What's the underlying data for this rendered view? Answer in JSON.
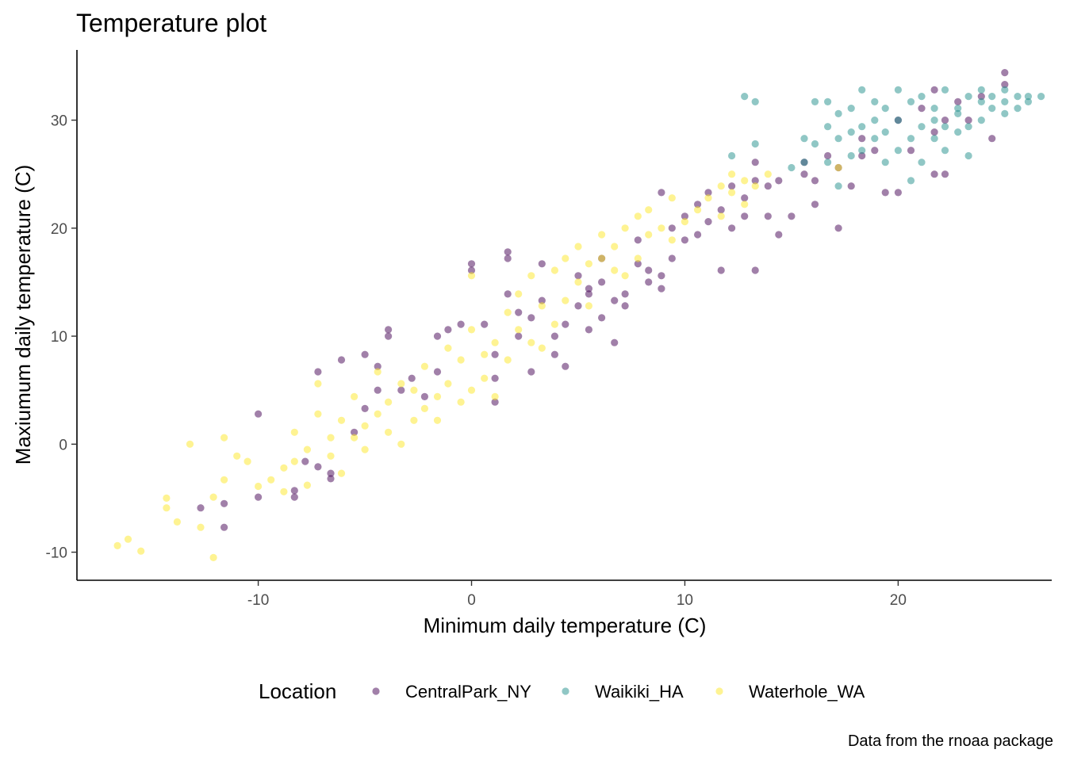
{
  "chart_data": {
    "type": "scatter",
    "title": "Temperature plot",
    "xlabel": "Minimum daily temperature (C)",
    "ylabel": "Maxiumum daily temperature (C)",
    "caption": "Data from the rnoaa package",
    "xlim": [
      -18.5,
      27.2
    ],
    "ylim": [
      -12.6,
      36.5
    ],
    "x_ticks": [
      -10,
      0,
      10,
      20
    ],
    "y_ticks": [
      -10,
      0,
      10,
      20,
      30
    ],
    "grid": false,
    "legend_position": "bottom",
    "legend_title": "Location",
    "point_opacity": 0.5,
    "series": [
      {
        "name": "CentralPark_NY",
        "color": "#440154",
        "points": [
          [
            -10,
            2.8
          ],
          [
            -10,
            -4.9
          ],
          [
            -12.7,
            -5.9
          ],
          [
            -11.6,
            -5.5
          ],
          [
            -11.6,
            -7.7
          ],
          [
            -8.3,
            -4.3
          ],
          [
            -8.3,
            -4.9
          ],
          [
            -7.8,
            -1.6
          ],
          [
            -7.2,
            6.7
          ],
          [
            -7.2,
            -2.1
          ],
          [
            -6.6,
            -3.2
          ],
          [
            -6.6,
            -2.7
          ],
          [
            -6.1,
            7.8
          ],
          [
            -5.5,
            1.1
          ],
          [
            -5,
            8.3
          ],
          [
            -5,
            3.3
          ],
          [
            -4.4,
            7.2
          ],
          [
            -4.4,
            5
          ],
          [
            -3.9,
            10
          ],
          [
            -3.9,
            10.6
          ],
          [
            -3.3,
            5
          ],
          [
            -2.8,
            6.1
          ],
          [
            -2.2,
            4.4
          ],
          [
            -1.6,
            10
          ],
          [
            -1.6,
            6.7
          ],
          [
            -1.1,
            10.6
          ],
          [
            -0.5,
            11.1
          ],
          [
            0,
            16.1
          ],
          [
            0,
            16.7
          ],
          [
            0.6,
            11.1
          ],
          [
            1.1,
            8.3
          ],
          [
            1.1,
            6.1
          ],
          [
            1.1,
            3.9
          ],
          [
            1.7,
            17.2
          ],
          [
            1.7,
            17.8
          ],
          [
            1.7,
            13.9
          ],
          [
            2.2,
            10
          ],
          [
            2.2,
            12.2
          ],
          [
            2.8,
            11.7
          ],
          [
            2.8,
            6.7
          ],
          [
            3.3,
            16.7
          ],
          [
            3.3,
            13.3
          ],
          [
            3.9,
            10
          ],
          [
            3.9,
            8.3
          ],
          [
            4.4,
            7.2
          ],
          [
            4.4,
            11.1
          ],
          [
            5,
            15.6
          ],
          [
            5,
            12.8
          ],
          [
            5.5,
            14.4
          ],
          [
            5.5,
            13.9
          ],
          [
            5.5,
            10.6
          ],
          [
            6.1,
            15
          ],
          [
            6.1,
            11.7
          ],
          [
            6.1,
            17.2
          ],
          [
            6.7,
            13.3
          ],
          [
            6.7,
            9.4
          ],
          [
            7.2,
            13.9
          ],
          [
            7.2,
            12.8
          ],
          [
            7.8,
            18.9
          ],
          [
            7.8,
            16.7
          ],
          [
            8.3,
            16.1
          ],
          [
            8.3,
            15
          ],
          [
            8.9,
            15.6
          ],
          [
            8.9,
            14.4
          ],
          [
            8.9,
            23.3
          ],
          [
            9.4,
            20
          ],
          [
            9.4,
            17.2
          ],
          [
            10,
            21.1
          ],
          [
            10,
            18.9
          ],
          [
            10.6,
            22.2
          ],
          [
            10.6,
            19.4
          ],
          [
            11.1,
            23.3
          ],
          [
            11.1,
            20.6
          ],
          [
            11.7,
            21.7
          ],
          [
            11.7,
            16.1
          ],
          [
            12.2,
            23.9
          ],
          [
            12.2,
            20
          ],
          [
            12.8,
            21.1
          ],
          [
            12.8,
            22.8
          ],
          [
            13.3,
            24.4
          ],
          [
            13.3,
            26.1
          ],
          [
            13.3,
            16.1
          ],
          [
            13.9,
            23.9
          ],
          [
            13.9,
            21.1
          ],
          [
            14.4,
            24.4
          ],
          [
            14.4,
            19.4
          ],
          [
            15,
            21.1
          ],
          [
            15.6,
            26.1
          ],
          [
            15.6,
            25
          ],
          [
            16.1,
            24.4
          ],
          [
            16.1,
            22.2
          ],
          [
            16.7,
            26.7
          ],
          [
            17.2,
            25.6
          ],
          [
            17.2,
            20
          ],
          [
            17.8,
            23.9
          ],
          [
            18.3,
            28.3
          ],
          [
            18.3,
            26.7
          ],
          [
            18.9,
            27.2
          ],
          [
            19.4,
            23.3
          ],
          [
            20,
            30
          ],
          [
            20,
            23.3
          ],
          [
            20.6,
            27.2
          ],
          [
            21.1,
            31.1
          ],
          [
            21.7,
            32.8
          ],
          [
            21.7,
            25
          ],
          [
            21.7,
            28.9
          ],
          [
            22.2,
            30
          ],
          [
            22.2,
            25
          ],
          [
            22.8,
            31.7
          ],
          [
            23.3,
            30
          ],
          [
            23.9,
            32.2
          ],
          [
            24.4,
            28.3
          ],
          [
            25,
            33.3
          ],
          [
            25,
            34.4
          ]
        ]
      },
      {
        "name": "Waikiki_HA",
        "color": "#21908C",
        "points": [
          [
            12.2,
            26.7
          ],
          [
            12.8,
            32.2
          ],
          [
            13.3,
            31.7
          ],
          [
            13.3,
            27.8
          ],
          [
            15,
            25.6
          ],
          [
            15.6,
            26.1
          ],
          [
            15.6,
            28.3
          ],
          [
            16.1,
            31.7
          ],
          [
            16.1,
            27.8
          ],
          [
            16.7,
            29.4
          ],
          [
            16.7,
            26.1
          ],
          [
            16.7,
            31.7
          ],
          [
            17.2,
            28.3
          ],
          [
            17.2,
            30.6
          ],
          [
            17.2,
            23.9
          ],
          [
            17.8,
            28.9
          ],
          [
            17.8,
            31.1
          ],
          [
            17.8,
            26.7
          ],
          [
            18.3,
            32.8
          ],
          [
            18.3,
            29.4
          ],
          [
            18.3,
            27.2
          ],
          [
            18.9,
            30
          ],
          [
            18.9,
            31.7
          ],
          [
            18.9,
            28.3
          ],
          [
            19.4,
            26.1
          ],
          [
            19.4,
            31.1
          ],
          [
            19.4,
            28.9
          ],
          [
            20,
            32.8
          ],
          [
            20,
            30
          ],
          [
            20,
            27.2
          ],
          [
            20.6,
            24.4
          ],
          [
            20.6,
            28.3
          ],
          [
            20.6,
            31.7
          ],
          [
            21.1,
            32.2
          ],
          [
            21.1,
            29.4
          ],
          [
            21.1,
            26.1
          ],
          [
            21.7,
            31.1
          ],
          [
            21.7,
            28.3
          ],
          [
            21.7,
            30
          ],
          [
            22.2,
            32.8
          ],
          [
            22.2,
            29.4
          ],
          [
            22.2,
            27.2
          ],
          [
            22.8,
            31.1
          ],
          [
            22.8,
            28.9
          ],
          [
            22.8,
            30.6
          ],
          [
            23.3,
            32.2
          ],
          [
            23.3,
            29.4
          ],
          [
            23.3,
            26.7
          ],
          [
            23.9,
            31.7
          ],
          [
            23.9,
            30
          ],
          [
            23.9,
            32.8
          ],
          [
            24.4,
            31.1
          ],
          [
            24.4,
            32.2
          ],
          [
            25,
            31.7
          ],
          [
            25,
            30.6
          ],
          [
            25,
            32.8
          ],
          [
            25.6,
            31.1
          ],
          [
            25.6,
            32.2
          ],
          [
            26.1,
            32.2
          ],
          [
            26.1,
            31.7
          ],
          [
            26.7,
            32.2
          ]
        ]
      },
      {
        "name": "Waterhole_WA",
        "color": "#FDE725",
        "points": [
          [
            -16.6,
            -9.4
          ],
          [
            -16.1,
            -8.8
          ],
          [
            -15.5,
            -9.9
          ],
          [
            -14.3,
            -5
          ],
          [
            -14.3,
            -5.9
          ],
          [
            -13.8,
            -7.2
          ],
          [
            -13.2,
            0
          ],
          [
            -12.7,
            -7.7
          ],
          [
            -12.1,
            -10.5
          ],
          [
            -12.1,
            -4.9
          ],
          [
            -11.6,
            0.6
          ],
          [
            -11.6,
            -3.3
          ],
          [
            -11,
            -1.1
          ],
          [
            -10.5,
            -1.6
          ],
          [
            -10,
            -3.9
          ],
          [
            -9.4,
            -3.3
          ],
          [
            -8.8,
            -2.2
          ],
          [
            -8.8,
            -4.4
          ],
          [
            -8.3,
            -1.6
          ],
          [
            -8.3,
            1.1
          ],
          [
            -7.7,
            -3.8
          ],
          [
            -7.7,
            -0.5
          ],
          [
            -7.2,
            5.6
          ],
          [
            -7.2,
            2.8
          ],
          [
            -6.6,
            0.6
          ],
          [
            -6.6,
            -1.1
          ],
          [
            -6.1,
            -2.7
          ],
          [
            -6.1,
            2.2
          ],
          [
            -5.5,
            0.6
          ],
          [
            -5.5,
            4.4
          ],
          [
            -5,
            1.7
          ],
          [
            -5,
            -0.5
          ],
          [
            -4.4,
            2.8
          ],
          [
            -4.4,
            6.7
          ],
          [
            -3.9,
            1.1
          ],
          [
            -3.9,
            3.9
          ],
          [
            -3.3,
            5.6
          ],
          [
            -3.3,
            0
          ],
          [
            -2.7,
            2.2
          ],
          [
            -2.7,
            5
          ],
          [
            -2.2,
            3.3
          ],
          [
            -2.2,
            7.2
          ],
          [
            -1.6,
            4.4
          ],
          [
            -1.6,
            2.2
          ],
          [
            -1.1,
            5.6
          ],
          [
            -1.1,
            8.9
          ],
          [
            -0.5,
            3.9
          ],
          [
            -0.5,
            7.8
          ],
          [
            0,
            5
          ],
          [
            0,
            10.6
          ],
          [
            0,
            15.6
          ],
          [
            0.6,
            6.1
          ],
          [
            0.6,
            8.3
          ],
          [
            1.1,
            4.4
          ],
          [
            1.1,
            9.4
          ],
          [
            1.7,
            7.8
          ],
          [
            1.7,
            12.2
          ],
          [
            2.2,
            10.6
          ],
          [
            2.2,
            13.9
          ],
          [
            2.8,
            9.4
          ],
          [
            2.8,
            15.6
          ],
          [
            3.3,
            12.8
          ],
          [
            3.3,
            8.9
          ],
          [
            3.9,
            11.1
          ],
          [
            3.9,
            16.1
          ],
          [
            4.4,
            13.3
          ],
          [
            4.4,
            17.2
          ],
          [
            5,
            15
          ],
          [
            5,
            18.3
          ],
          [
            5.5,
            16.7
          ],
          [
            5.5,
            12.8
          ],
          [
            6.1,
            17.2
          ],
          [
            6.1,
            19.4
          ],
          [
            6.7,
            16.1
          ],
          [
            6.7,
            18.3
          ],
          [
            7.2,
            20
          ],
          [
            7.2,
            15.6
          ],
          [
            7.8,
            21.1
          ],
          [
            7.8,
            17.2
          ],
          [
            8.3,
            19.4
          ],
          [
            8.3,
            21.7
          ],
          [
            8.9,
            20
          ],
          [
            9.4,
            22.8
          ],
          [
            9.4,
            18.9
          ],
          [
            10,
            20.6
          ],
          [
            10.6,
            21.7
          ],
          [
            11.1,
            22.8
          ],
          [
            11.7,
            23.9
          ],
          [
            11.7,
            21.1
          ],
          [
            12.2,
            23.3
          ],
          [
            12.2,
            25
          ],
          [
            12.8,
            22.2
          ],
          [
            12.8,
            24.4
          ],
          [
            13.3,
            23.9
          ],
          [
            13.9,
            25
          ],
          [
            17.2,
            25.6
          ]
        ]
      }
    ]
  }
}
